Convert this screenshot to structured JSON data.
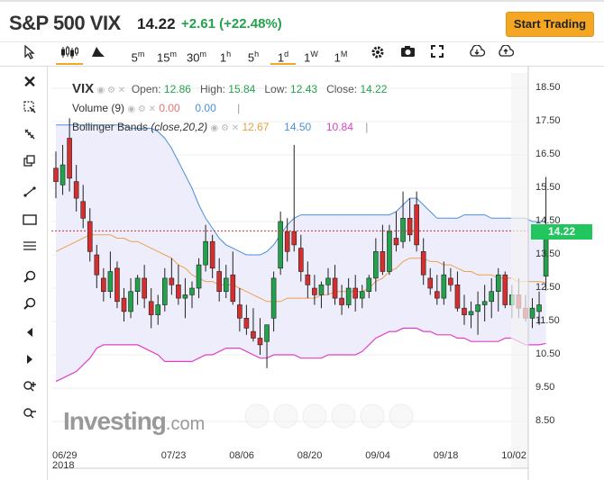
{
  "header": {
    "title": "S&P 500 VIX",
    "price": "14.22",
    "change": "+2.61 (+22.48%)",
    "start_button": "Start Trading"
  },
  "toolbar": {
    "intervals": [
      "5m",
      "15m",
      "30m",
      "1h",
      "5h",
      "1d",
      "1W",
      "1M"
    ],
    "active_interval": "1d"
  },
  "legend": {
    "symbol": "VIX",
    "open_label": "Open:",
    "open": "12.86",
    "high_label": "High:",
    "high": "15.84",
    "low_label": "Low:",
    "low": "12.43",
    "close_label": "Close:",
    "close": "14.22",
    "volume_label": "Volume (9)",
    "volume_val1": "0.00",
    "volume_val2": "0.00",
    "bb_label": "Bollinger Bands",
    "bb_params": "(close,20,2)",
    "bb_mid": "12.67",
    "bb_upper": "14.50",
    "bb_lower": "10.84"
  },
  "price_tag": "14.22",
  "logo": {
    "main": "Investing",
    "suffix": ".com"
  },
  "colors": {
    "up": "#22a34b",
    "down": "#d32f2f",
    "upper_band": "#4a90d9",
    "mid_band": "#f0a050",
    "lower_band": "#e040c8",
    "band_fill": "#e8e8fa",
    "accent": "#f5a623"
  },
  "chart_data": {
    "type": "candlestick",
    "title": "S&P 500 VIX",
    "y_ticks": [
      "18.50",
      "17.50",
      "16.50",
      "15.50",
      "14.50",
      "13.50",
      "12.50",
      "11.50",
      "10.50",
      "9.50",
      "8.50"
    ],
    "ylim": [
      8.5,
      18.5
    ],
    "x_ticks": [
      {
        "label": "06/29",
        "sub": "2018",
        "index": 0
      },
      {
        "label": "07/23",
        "index": 16
      },
      {
        "label": "08/06",
        "index": 26
      },
      {
        "label": "08/20",
        "index": 36
      },
      {
        "label": "09/04",
        "index": 46
      },
      {
        "label": "09/18",
        "index": 56
      },
      {
        "label": "10/02",
        "index": 66
      }
    ],
    "candles": [
      [
        16.1,
        16.6,
        15.2,
        15.7
      ],
      [
        15.6,
        16.8,
        15.3,
        16.2
      ],
      [
        17.0,
        17.6,
        15.4,
        15.8
      ],
      [
        15.7,
        16.2,
        14.8,
        15.2
      ],
      [
        15.1,
        15.6,
        14.3,
        14.6
      ],
      [
        14.5,
        14.9,
        13.3,
        13.6
      ],
      [
        13.5,
        13.8,
        12.5,
        12.9
      ],
      [
        12.8,
        13.1,
        12.1,
        12.4
      ],
      [
        12.4,
        13.6,
        12.2,
        13.0
      ],
      [
        13.1,
        13.3,
        11.9,
        12.1
      ],
      [
        12.2,
        12.5,
        11.5,
        11.8
      ],
      [
        11.8,
        12.8,
        11.6,
        12.4
      ],
      [
        12.4,
        12.9,
        12.0,
        12.8
      ],
      [
        12.8,
        13.2,
        11.9,
        12.2
      ],
      [
        12.1,
        12.5,
        11.3,
        11.7
      ],
      [
        11.7,
        12.3,
        11.4,
        12.0
      ],
      [
        12.0,
        13.1,
        11.8,
        12.8
      ],
      [
        12.8,
        13.4,
        12.3,
        12.6
      ],
      [
        12.6,
        13.2,
        12.0,
        12.2
      ],
      [
        12.2,
        12.8,
        11.6,
        12.3
      ],
      [
        12.3,
        12.7,
        11.9,
        12.5
      ],
      [
        12.5,
        13.4,
        12.2,
        13.2
      ],
      [
        13.2,
        14.4,
        13.0,
        13.9
      ],
      [
        13.9,
        14.1,
        12.8,
        13.1
      ],
      [
        13.0,
        13.4,
        12.1,
        12.4
      ],
      [
        12.4,
        13.2,
        12.2,
        12.8
      ],
      [
        12.9,
        13.6,
        12.0,
        12.1
      ],
      [
        12.0,
        12.5,
        11.2,
        11.6
      ],
      [
        11.6,
        12.0,
        11.1,
        11.3
      ],
      [
        11.2,
        11.9,
        10.9,
        11.0
      ],
      [
        11.0,
        11.6,
        10.5,
        10.8
      ],
      [
        10.9,
        11.4,
        10.1,
        11.4
      ],
      [
        11.6,
        13.0,
        11.2,
        12.8
      ],
      [
        13.1,
        14.8,
        12.9,
        14.5
      ],
      [
        14.2,
        14.6,
        13.3,
        13.6
      ],
      [
        14.2,
        16.8,
        13.6,
        13.8
      ],
      [
        13.7,
        14.1,
        12.7,
        13.0
      ],
      [
        12.9,
        13.3,
        12.2,
        12.6
      ],
      [
        12.5,
        12.9,
        12.0,
        12.3
      ],
      [
        12.3,
        12.7,
        11.9,
        12.6
      ],
      [
        12.6,
        13.1,
        12.3,
        12.8
      ],
      [
        12.8,
        13.2,
        12.0,
        12.2
      ],
      [
        12.2,
        12.6,
        11.7,
        12.0
      ],
      [
        12.0,
        12.8,
        11.9,
        12.5
      ],
      [
        12.5,
        12.9,
        11.8,
        12.2
      ],
      [
        12.2,
        12.6,
        11.9,
        12.4
      ],
      [
        12.4,
        12.9,
        12.2,
        12.8
      ],
      [
        12.8,
        14.0,
        12.4,
        13.6
      ],
      [
        13.6,
        14.4,
        12.9,
        13.0
      ],
      [
        13.0,
        14.4,
        12.9,
        14.2
      ],
      [
        14.0,
        14.8,
        13.6,
        13.8
      ],
      [
        13.9,
        15.4,
        13.7,
        14.6
      ],
      [
        14.6,
        15.2,
        13.9,
        14.1
      ],
      [
        15.0,
        15.4,
        13.6,
        13.8
      ],
      [
        13.6,
        14.0,
        12.6,
        12.9
      ],
      [
        12.8,
        13.1,
        12.3,
        12.5
      ],
      [
        12.4,
        12.9,
        12.0,
        12.2
      ],
      [
        12.2,
        13.3,
        12.0,
        12.9
      ],
      [
        12.8,
        13.1,
        12.4,
        12.6
      ],
      [
        12.6,
        13.0,
        11.8,
        11.9
      ],
      [
        11.9,
        12.3,
        11.4,
        11.7
      ],
      [
        11.7,
        12.1,
        11.3,
        11.8
      ],
      [
        11.8,
        12.4,
        11.1,
        12.0
      ],
      [
        12.0,
        12.6,
        11.5,
        12.1
      ],
      [
        12.1,
        12.8,
        11.6,
        12.4
      ],
      [
        12.4,
        13.1,
        11.8,
        12.9
      ],
      [
        12.9,
        13.0,
        11.9,
        12.0
      ],
      [
        12.0,
        12.6,
        11.6,
        12.3
      ],
      [
        12.3,
        12.8,
        11.6,
        11.9
      ],
      [
        11.9,
        12.3,
        11.5,
        11.6
      ],
      [
        11.6,
        12.2,
        11.3,
        11.9
      ],
      [
        11.8,
        12.4,
        11.4,
        12.0
      ],
      [
        12.86,
        15.84,
        12.43,
        14.22
      ]
    ],
    "upper_band": [
      17.4,
      17.4,
      17.4,
      17.4,
      17.4,
      17.4,
      17.4,
      17.4,
      17.4,
      17.4,
      17.4,
      17.3,
      17.3,
      17.3,
      17.3,
      17.2,
      17.0,
      16.7,
      16.3,
      15.9,
      15.5,
      15.0,
      14.6,
      14.3,
      14.0,
      13.8,
      13.7,
      13.6,
      13.5,
      13.5,
      13.5,
      13.6,
      13.8,
      14.1,
      14.4,
      14.6,
      14.7,
      14.7,
      14.7,
      14.7,
      14.7,
      14.7,
      14.7,
      14.7,
      14.7,
      14.7,
      14.7,
      14.7,
      14.7,
      14.7,
      14.8,
      15.0,
      15.2,
      15.2,
      15.0,
      14.8,
      14.6,
      14.6,
      14.6,
      14.6,
      14.7,
      14.7,
      14.7,
      14.7,
      14.6,
      14.6,
      14.6,
      14.6,
      14.6,
      14.6,
      14.5,
      14.5,
      14.5
    ],
    "mid_band": [
      13.6,
      13.7,
      13.8,
      13.9,
      14.0,
      14.1,
      14.1,
      14.1,
      14.1,
      14.0,
      14.0,
      13.9,
      13.9,
      13.8,
      13.7,
      13.6,
      13.5,
      13.4,
      13.2,
      13.1,
      12.9,
      12.8,
      12.7,
      12.7,
      12.6,
      12.6,
      12.6,
      12.5,
      12.4,
      12.3,
      12.2,
      12.1,
      12.1,
      12.1,
      12.2,
      12.2,
      12.2,
      12.2,
      12.2,
      12.3,
      12.3,
      12.4,
      12.4,
      12.4,
      12.4,
      12.4,
      12.5,
      12.7,
      12.8,
      13.0,
      13.1,
      13.3,
      13.4,
      13.4,
      13.4,
      13.3,
      13.3,
      13.2,
      13.2,
      13.1,
      13.0,
      13.0,
      12.9,
      12.9,
      12.9,
      12.8,
      12.8,
      12.8,
      12.7,
      12.7,
      12.7,
      12.7,
      12.67
    ],
    "lower_band": [
      9.7,
      9.8,
      9.9,
      10.0,
      10.2,
      10.4,
      10.7,
      10.8,
      10.8,
      10.8,
      10.8,
      10.8,
      10.8,
      10.7,
      10.6,
      10.5,
      10.3,
      10.3,
      10.3,
      10.3,
      10.3,
      10.4,
      10.5,
      10.5,
      10.6,
      10.7,
      10.7,
      10.7,
      10.6,
      10.5,
      10.4,
      10.4,
      10.5,
      10.5,
      10.5,
      10.5,
      10.4,
      10.4,
      10.4,
      10.4,
      10.5,
      10.5,
      10.5,
      10.5,
      10.5,
      10.6,
      10.8,
      11.0,
      11.1,
      11.2,
      11.2,
      11.3,
      11.3,
      11.3,
      11.2,
      11.2,
      11.1,
      11.1,
      11.1,
      11.0,
      11.0,
      10.9,
      10.9,
      10.9,
      10.9,
      10.9,
      11.0,
      11.0,
      10.9,
      10.8,
      10.8,
      10.8,
      10.84
    ]
  }
}
